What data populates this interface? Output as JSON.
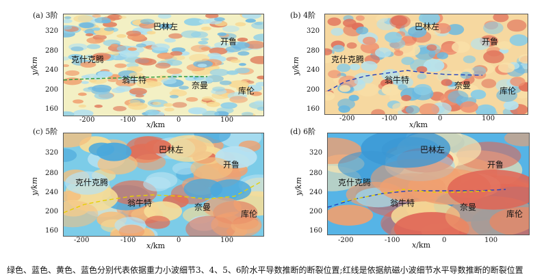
{
  "panels": [
    {
      "label": "(a) 3阶",
      "places": {
        "balinzuo": "巴林左",
        "kailu": "开鲁",
        "keshiketeng": "克什克腾",
        "wengniute": "翁牛特",
        "naiman": "奈曼",
        "kulun": "库伦"
      },
      "theme": "hf"
    },
    {
      "label": "(b) 4阶",
      "places": {
        "balinzuo": "巴林左",
        "kailu": "开鲁",
        "keshiketeng": "克什克腾",
        "wengniute": "翁牛特",
        "naiman": "奈曼",
        "kulun": "库伦"
      },
      "theme": "mf"
    },
    {
      "label": "(c) 5阶",
      "places": {
        "balinzuo": "巴林左",
        "kailu": "开鲁",
        "keshiketeng": "克什克腾",
        "wengniute": "翁牛特",
        "naiman": "奈曼",
        "kulun": "库伦"
      },
      "theme": "lf"
    },
    {
      "label": "(d) 6阶",
      "places": {
        "balinzuo": "巴林左",
        "kailu": "开鲁",
        "keshiketeng": "克什克腾",
        "wengniute": "翁牛特",
        "naiman": "奈曼",
        "kulun": "库伦"
      },
      "theme": "vlf"
    }
  ],
  "axes": {
    "x_label_var": "x",
    "x_label_unit": "/km",
    "y_label": "y/km",
    "x_ticks": [
      "-200",
      "-100",
      "0",
      "100"
    ],
    "y_ticks": [
      "320",
      "280",
      "240",
      "200",
      "160"
    ]
  },
  "colors": {
    "green": "#2e9b3a",
    "blue": "#1f3fbf",
    "yellow": "#e6d000",
    "red": "#d32f2f"
  },
  "caption": "绿色、蓝色、黄色、蓝色分别代表依据重力小波细节3、4、5、6阶水平导数推断的断裂位置;红线是依据航磁小波细节水平导数推断的断裂位置"
}
